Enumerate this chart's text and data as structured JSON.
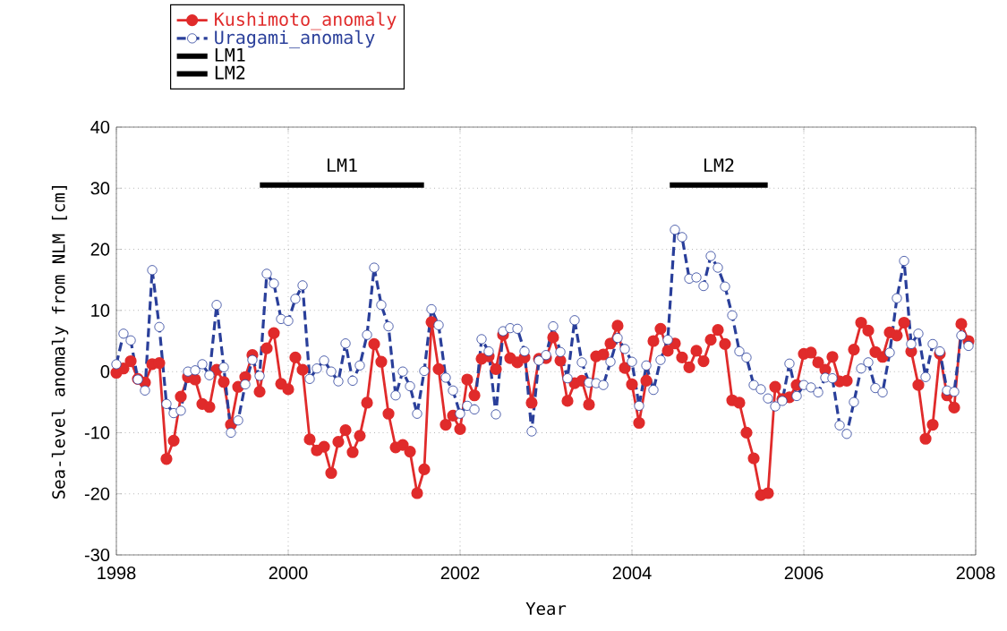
{
  "chart_data": {
    "type": "line",
    "xlabel": "Year",
    "ylabel": "Sea-level anomaly from NLM [cm]",
    "x": [
      1998.0,
      1998.083,
      1998.167,
      1998.25,
      1998.333,
      1998.417,
      1998.5,
      1998.583,
      1998.667,
      1998.75,
      1998.833,
      1998.917,
      1999.0,
      1999.083,
      1999.167,
      1999.25,
      1999.333,
      1999.417,
      1999.5,
      1999.583,
      1999.667,
      1999.75,
      1999.833,
      1999.917,
      2000.0,
      2000.083,
      2000.167,
      2000.25,
      2000.333,
      2000.417,
      2000.5,
      2000.583,
      2000.667,
      2000.75,
      2000.833,
      2000.917,
      2001.0,
      2001.083,
      2001.167,
      2001.25,
      2001.333,
      2001.417,
      2001.5,
      2001.583,
      2001.667,
      2001.75,
      2001.833,
      2001.917,
      2002.0,
      2002.083,
      2002.167,
      2002.25,
      2002.333,
      2002.417,
      2002.5,
      2002.583,
      2002.667,
      2002.75,
      2002.833,
      2002.917,
      2003.0,
      2003.083,
      2003.167,
      2003.25,
      2003.333,
      2003.417,
      2003.5,
      2003.583,
      2003.667,
      2003.75,
      2003.833,
      2003.917,
      2004.0,
      2004.083,
      2004.167,
      2004.25,
      2004.333,
      2004.417,
      2004.5,
      2004.583,
      2004.667,
      2004.75,
      2004.833,
      2004.917,
      2005.0,
      2005.083,
      2005.167,
      2005.25,
      2005.333,
      2005.417,
      2005.5,
      2005.583,
      2005.667,
      2005.75,
      2005.833,
      2005.917,
      2006.0,
      2006.083,
      2006.167,
      2006.25,
      2006.333,
      2006.417,
      2006.5,
      2006.583,
      2006.667,
      2006.75,
      2006.833,
      2006.917,
      2007.0,
      2007.083,
      2007.167,
      2007.25,
      2007.333,
      2007.417,
      2007.5,
      2007.583,
      2007.667,
      2007.75,
      2007.833,
      2007.917
    ],
    "series": [
      {
        "name": "Kushimoto_anomaly",
        "color": "#e02b2b",
        "marker": "circle",
        "line_style": "solid",
        "values": [
          -0.2,
          0.5,
          1.7,
          -1.2,
          -1.8,
          1.2,
          1.4,
          -14.3,
          -11.3,
          -4.1,
          -0.9,
          -1.3,
          -5.3,
          -5.8,
          0.3,
          -1.7,
          -8.7,
          -2.5,
          -0.9,
          2.7,
          -3.3,
          3.8,
          6.3,
          -2.0,
          -2.9,
          2.3,
          0.3,
          -11.1,
          -12.9,
          -12.3,
          -16.6,
          -11.5,
          -9.6,
          -13.2,
          -10.5,
          -5.1,
          4.5,
          1.6,
          -6.9,
          -12.4,
          -12.0,
          -13.1,
          -19.9,
          -16.0,
          8.1,
          0.4,
          -8.7,
          -7.2,
          -9.4,
          -1.3,
          -3.9,
          2.1,
          2.5,
          0.4,
          6.0,
          2.2,
          1.5,
          2.3,
          -5.1,
          2.1,
          2.2,
          5.6,
          1.8,
          -4.8,
          -1.9,
          -1.5,
          -5.4,
          2.5,
          2.8,
          4.6,
          7.5,
          0.6,
          -2.1,
          -8.4,
          -1.5,
          5.0,
          7.0,
          3.4,
          4.6,
          2.3,
          0.7,
          3.4,
          1.7,
          5.2,
          6.8,
          4.5,
          -4.7,
          -5.1,
          -10.0,
          -14.2,
          -20.2,
          -19.9,
          -2.5,
          -4.5,
          -4.2,
          -2.2,
          2.9,
          3.1,
          1.5,
          0.3,
          2.4,
          -1.6,
          -1.5,
          3.6,
          8.0,
          6.7,
          3.2,
          2.4,
          6.4,
          5.9,
          8.0,
          3.3,
          -2.2,
          -11.0,
          -8.7,
          2.9,
          -3.9,
          -5.9,
          7.8,
          5.0
        ]
      },
      {
        "name": "Uragami_anomaly",
        "color": "#2a3f9a",
        "marker": "circle",
        "line_style": "dashed",
        "values": [
          1.2,
          6.2,
          5.1,
          -1.3,
          -3.1,
          16.6,
          7.3,
          -5.3,
          -6.8,
          -6.4,
          0.0,
          0.2,
          1.2,
          -0.6,
          10.9,
          0.7,
          -10.0,
          -8.0,
          -2.1,
          1.9,
          -0.7,
          16.0,
          14.4,
          8.6,
          8.3,
          11.9,
          14.1,
          -1.2,
          0.5,
          1.8,
          0.0,
          -1.6,
          4.6,
          -1.5,
          1.0,
          6.0,
          17.0,
          10.9,
          7.4,
          -3.9,
          0.0,
          -2.4,
          -6.9,
          0.1,
          10.2,
          7.6,
          -1.0,
          -3.1,
          -6.9,
          -5.6,
          -6.2,
          5.3,
          3.3,
          -7.0,
          6.6,
          7.1,
          7.0,
          3.3,
          -9.8,
          1.8,
          2.7,
          7.4,
          3.2,
          -1.1,
          8.4,
          1.5,
          -1.8,
          -1.9,
          -2.2,
          1.6,
          5.5,
          3.7,
          1.6,
          -5.6,
          1.0,
          -3.0,
          1.9,
          5.2,
          23.2,
          22.0,
          15.2,
          15.4,
          14.0,
          18.9,
          17.0,
          13.9,
          9.2,
          3.3,
          2.3,
          -2.2,
          -2.9,
          -4.4,
          -5.7,
          -4.8,
          1.3,
          -4.0,
          -2.2,
          -2.6,
          -3.4,
          -1.0,
          -1.1,
          -8.8,
          -10.2,
          -5.0,
          0.5,
          1.5,
          -2.7,
          -3.4,
          3.1,
          12.0,
          18.1,
          4.5,
          6.2,
          -0.9,
          4.5,
          3.3,
          -3.1,
          -3.3,
          5.9,
          4.2
        ]
      },
      {
        "name": "LM1",
        "color": "#000000",
        "marker": "none",
        "line_style": "solid",
        "x": [
          1999.67,
          2001.58
        ],
        "values": [
          30.5,
          30.5
        ]
      },
      {
        "name": "LM2",
        "color": "#000000",
        "marker": "none",
        "line_style": "solid",
        "x": [
          2004.44,
          2005.58
        ],
        "values": [
          30.5,
          30.5
        ]
      }
    ],
    "annotations": [
      "LM1",
      "LM2"
    ],
    "xlim": [
      1998,
      2008
    ],
    "xticks": [
      1998,
      2000,
      2002,
      2004,
      2006,
      2008
    ],
    "ylim": [
      -30,
      40
    ],
    "yticks": [
      -30,
      -20,
      -10,
      0,
      10,
      20,
      30,
      40
    ],
    "grid": true,
    "legend": "top left"
  }
}
